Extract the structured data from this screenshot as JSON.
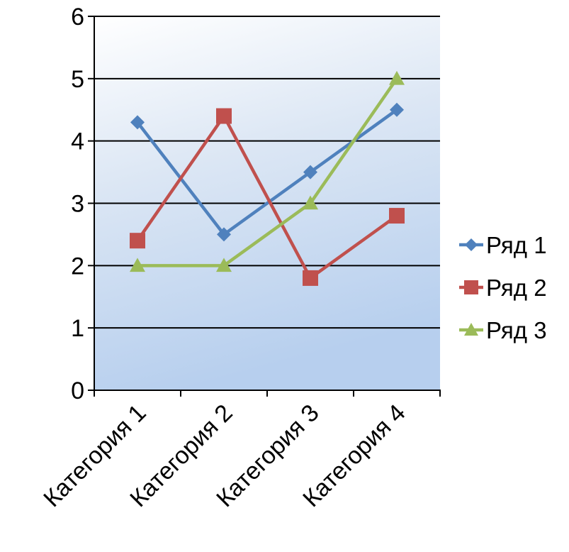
{
  "chart_data": {
    "type": "line",
    "categories": [
      "Категория 1",
      "Категория 2",
      "Категория 3",
      "Категория 4"
    ],
    "series": [
      {
        "name": "Ряд 1",
        "values": [
          4.3,
          2.5,
          3.5,
          4.5
        ],
        "color": "#4F81BD",
        "marker": "diamond"
      },
      {
        "name": "Ряд 2",
        "values": [
          2.4,
          4.4,
          1.8,
          2.8
        ],
        "color": "#C0504D",
        "marker": "square"
      },
      {
        "name": "Ряд 3",
        "values": [
          2,
          2,
          3,
          5
        ],
        "color": "#9BBB59",
        "marker": "triangle"
      }
    ],
    "title": "",
    "xlabel": "",
    "ylabel": "",
    "ylim": [
      0,
      6
    ],
    "yticks": [
      "0",
      "1",
      "2",
      "3",
      "4",
      "5",
      "6"
    ],
    "grid": true,
    "legend": "right",
    "plot_background": [
      "#ffffff",
      "#dbe6f4",
      "#b7cfee"
    ]
  }
}
